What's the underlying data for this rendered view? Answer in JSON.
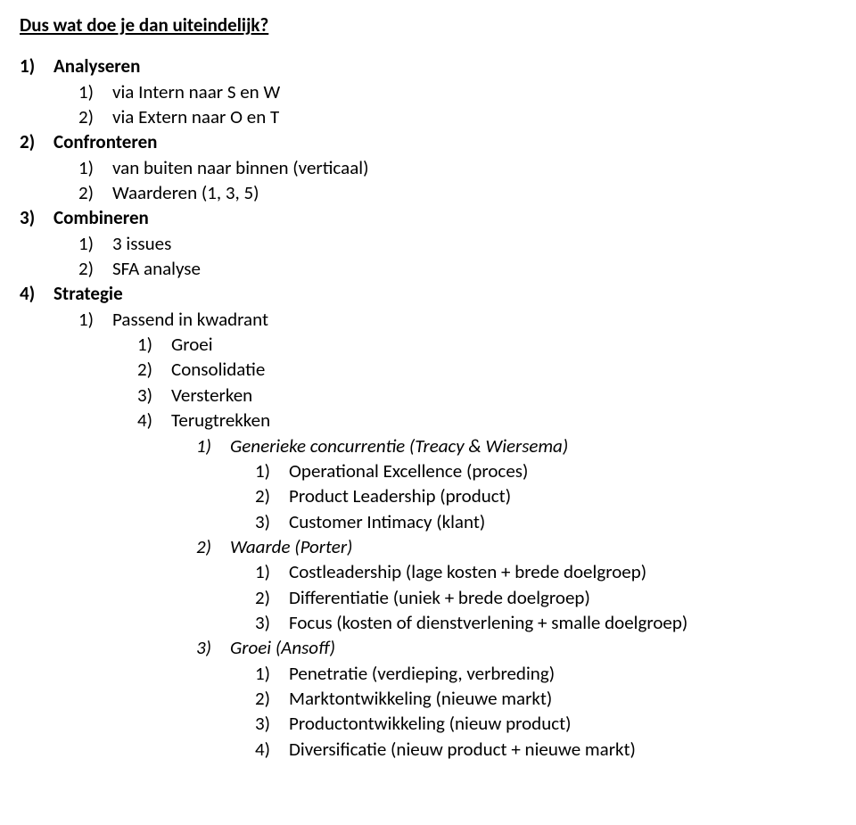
{
  "heading": "Dus wat doe je dan uiteindelijk?",
  "font": {
    "family": "Calibri",
    "body_size_pt": 16,
    "heading_size_pt": 16,
    "heading_bold": true,
    "heading_underline": true,
    "text_color": "#000000",
    "background_color": "#ffffff"
  },
  "items": [
    {
      "num": "1)",
      "text": "Analyseren",
      "level": 0,
      "bold": true,
      "italic": false
    },
    {
      "num": "1)",
      "text": "via Intern naar S en W",
      "level": 1,
      "bold": false,
      "italic": false
    },
    {
      "num": "2)",
      "text": "via Extern naar O en T",
      "level": 1,
      "bold": false,
      "italic": false
    },
    {
      "num": "2)",
      "text": "Confronteren",
      "level": 0,
      "bold": true,
      "italic": false
    },
    {
      "num": "1)",
      "text": "van buiten naar binnen (verticaal)",
      "level": 1,
      "bold": false,
      "italic": false
    },
    {
      "num": "2)",
      "text": "Waarderen (1, 3, 5)",
      "level": 1,
      "bold": false,
      "italic": false
    },
    {
      "num": "3)",
      "text": "Combineren",
      "level": 0,
      "bold": true,
      "italic": false
    },
    {
      "num": "1)",
      "text": "3 issues",
      "level": 1,
      "bold": false,
      "italic": false
    },
    {
      "num": "2)",
      "text": "SFA analyse",
      "level": 1,
      "bold": false,
      "italic": false
    },
    {
      "num": "4)",
      "text": "Strategie",
      "level": 0,
      "bold": true,
      "italic": false
    },
    {
      "num": "1)",
      "text": "Passend in kwadrant",
      "level": 1,
      "bold": false,
      "italic": false
    },
    {
      "num": "1)",
      "text": "Groei",
      "level": 2,
      "bold": false,
      "italic": false
    },
    {
      "num": "2)",
      "text": "Consolidatie",
      "level": 2,
      "bold": false,
      "italic": false
    },
    {
      "num": "3)",
      "text": "Versterken",
      "level": 2,
      "bold": false,
      "italic": false
    },
    {
      "num": "4)",
      "text": "Terugtrekken",
      "level": 2,
      "bold": false,
      "italic": false
    },
    {
      "num": "1)",
      "text": "Generieke concurrentie (Treacy & Wiersema)",
      "level": 3,
      "bold": false,
      "italic": true
    },
    {
      "num": "1)",
      "text": "Operational Excellence (proces)",
      "level": 4,
      "bold": false,
      "italic": false
    },
    {
      "num": "2)",
      "text": "Product Leadership (product)",
      "level": 4,
      "bold": false,
      "italic": false
    },
    {
      "num": "3)",
      "text": "Customer Intimacy (klant)",
      "level": 4,
      "bold": false,
      "italic": false
    },
    {
      "num": "2)",
      "text": "Waarde (Porter)",
      "level": 3,
      "bold": false,
      "italic": true
    },
    {
      "num": "1)",
      "text": "Costleadership (lage kosten + brede doelgroep)",
      "level": 4,
      "bold": false,
      "italic": false
    },
    {
      "num": "2)",
      "text": "Differentiatie (uniek + brede doelgroep)",
      "level": 4,
      "bold": false,
      "italic": false
    },
    {
      "num": "3)",
      "text": "Focus (kosten of dienstverlening + smalle doelgroep)",
      "level": 4,
      "bold": false,
      "italic": false
    },
    {
      "num": "3)",
      "text": "Groei (Ansoff)",
      "level": 3,
      "bold": false,
      "italic": true
    },
    {
      "num": "1)",
      "text": "Penetratie (verdieping, verbreding)",
      "level": 4,
      "bold": false,
      "italic": false
    },
    {
      "num": "2)",
      "text": "Marktontwikkeling (nieuwe markt)",
      "level": 4,
      "bold": false,
      "italic": false
    },
    {
      "num": "3)",
      "text": "Productontwikkeling (nieuw product)",
      "level": 4,
      "bold": false,
      "italic": false
    },
    {
      "num": "4)",
      "text": "Diversificatie (nieuw product + nieuwe markt)",
      "level": 4,
      "bold": false,
      "italic": false
    }
  ]
}
